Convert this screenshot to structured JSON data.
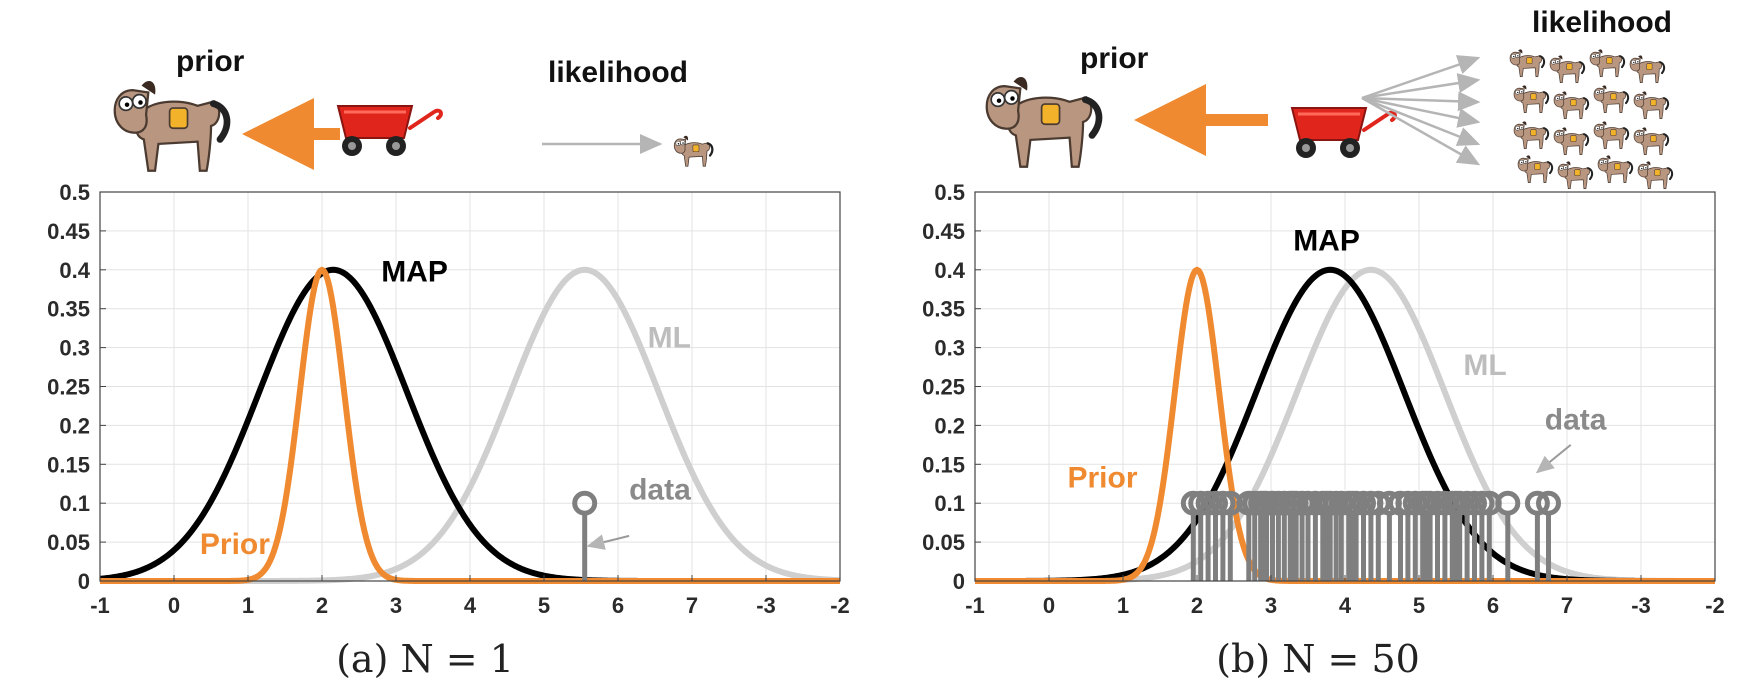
{
  "chart_data": [
    {
      "type": "line",
      "caption": "(a) N = 1",
      "header": {
        "prior_label": "prior",
        "likelihood_label": "likelihood"
      },
      "x_tick_labels": [
        "-1",
        "0",
        "1",
        "2",
        "3",
        "4",
        "5",
        "6",
        "7",
        "-3",
        "-2"
      ],
      "y_tick_labels": [
        "0",
        "0.05",
        "0.1",
        "0.15",
        "0.2",
        "0.25",
        "0.3",
        "0.35",
        "0.4",
        "0.45",
        "0.5"
      ],
      "xlim": [
        -1,
        9
      ],
      "ylim": [
        0,
        0.5
      ],
      "grid": true,
      "series": [
        {
          "name": "ML",
          "kind": "gaussian",
          "mean": 5.55,
          "sd": 1.0,
          "peak": 0.4,
          "color": "#cfcfcf"
        },
        {
          "name": "MAP",
          "kind": "gaussian",
          "mean": 2.15,
          "sd": 1.0,
          "peak": 0.4,
          "color": "#000000"
        },
        {
          "name": "Prior",
          "kind": "gaussian",
          "mean": 2.0,
          "sd": 0.3,
          "peak": 0.4,
          "color": "#f08a30"
        }
      ],
      "data_points": [
        5.55
      ],
      "data_stem_value": 0.1,
      "annotations": [
        {
          "text": "MAP",
          "x": 2.8,
          "y": 0.385,
          "color": "#000000"
        },
        {
          "text": "ML",
          "x": 6.4,
          "y": 0.3,
          "color": "#bdbdbd"
        },
        {
          "text": "Prior",
          "x": 0.35,
          "y": 0.035,
          "color": "#f08a30"
        },
        {
          "text": "data",
          "x": 6.15,
          "y": 0.105,
          "color": "#8a8a8a"
        }
      ],
      "data_arrow": {
        "from": [
          6.15,
          0.058
        ],
        "to": [
          5.6,
          0.045
        ]
      },
      "colors": {
        "ml": "#cfcfcf",
        "map": "#000000",
        "prior": "#f08a30",
        "data": "#7f7f7f"
      }
    },
    {
      "type": "line",
      "caption": "(b) N = 50",
      "header": {
        "prior_label": "prior",
        "likelihood_label": "likelihood"
      },
      "x_tick_labels": [
        "-1",
        "0",
        "1",
        "2",
        "3",
        "4",
        "5",
        "6",
        "7",
        "-3",
        "-2"
      ],
      "y_tick_labels": [
        "0",
        "0.05",
        "0.1",
        "0.15",
        "0.2",
        "0.25",
        "0.3",
        "0.35",
        "0.4",
        "0.45",
        "0.5"
      ],
      "xlim": [
        -1,
        9
      ],
      "ylim": [
        0,
        0.5
      ],
      "grid": true,
      "series": [
        {
          "name": "ML",
          "kind": "gaussian",
          "mean": 4.35,
          "sd": 1.0,
          "peak": 0.4,
          "color": "#cfcfcf"
        },
        {
          "name": "MAP",
          "kind": "gaussian",
          "mean": 3.8,
          "sd": 1.0,
          "peak": 0.4,
          "color": "#000000"
        },
        {
          "name": "Prior",
          "kind": "gaussian",
          "mean": 2.0,
          "sd": 0.3,
          "peak": 0.4,
          "color": "#f08a30"
        }
      ],
      "data_points": [
        1.95,
        2.05,
        2.15,
        2.25,
        2.35,
        2.45,
        2.7,
        2.78,
        2.86,
        2.94,
        3.02,
        3.1,
        3.18,
        3.26,
        3.34,
        3.42,
        3.5,
        3.6,
        3.7,
        3.8,
        3.88,
        3.95,
        4.05,
        4.15,
        4.25,
        4.35,
        4.45,
        4.75,
        4.85,
        4.95,
        5.05,
        5.15,
        5.25,
        5.35,
        5.45,
        5.55,
        5.65,
        5.75,
        5.85,
        5.95,
        6.2,
        6.6,
        6.75,
        2.9,
        3.3,
        3.75,
        4.1,
        4.6,
        5.1,
        5.5
      ],
      "data_stem_value": 0.1,
      "annotations": [
        {
          "text": "MAP",
          "x": 3.3,
          "y": 0.425,
          "color": "#000000"
        },
        {
          "text": "ML",
          "x": 5.6,
          "y": 0.265,
          "color": "#bdbdbd"
        },
        {
          "text": "Prior",
          "x": 0.25,
          "y": 0.12,
          "color": "#f08a30"
        },
        {
          "text": "data",
          "x": 6.7,
          "y": 0.195,
          "color": "#8a8a8a"
        }
      ],
      "data_arrow": {
        "from": [
          7.05,
          0.175
        ],
        "to": [
          6.6,
          0.14
        ]
      },
      "colors": {
        "ml": "#cfcfcf",
        "map": "#000000",
        "prior": "#f08a30",
        "data": "#7f7f7f"
      }
    }
  ]
}
